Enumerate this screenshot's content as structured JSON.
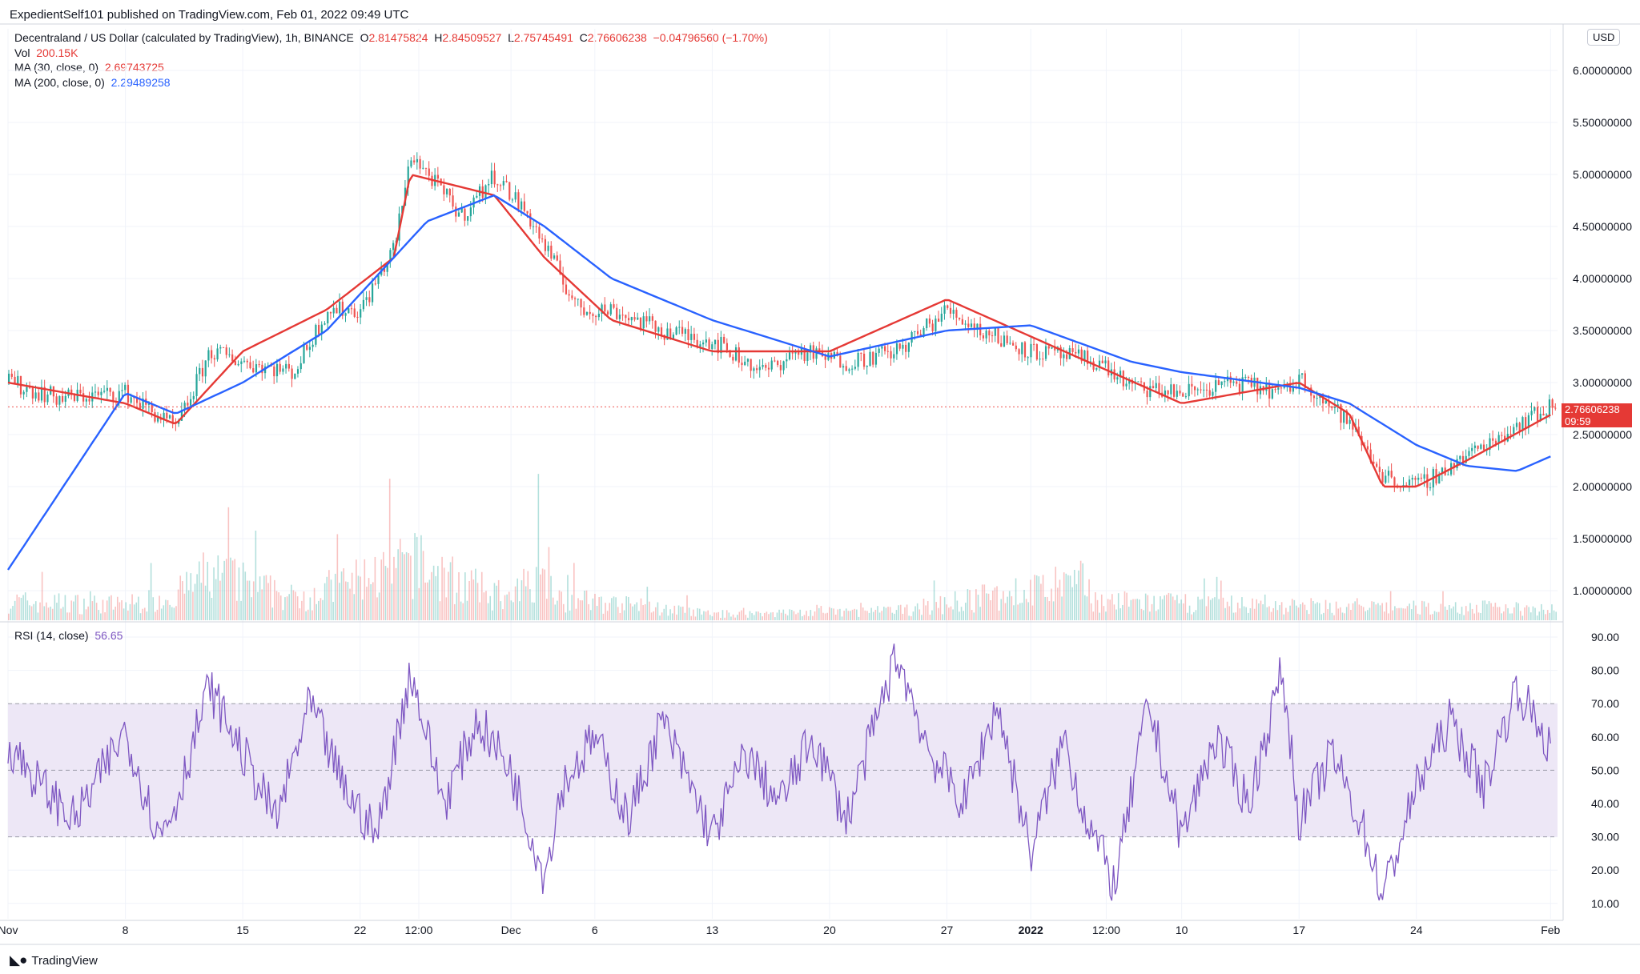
{
  "header": {
    "text": "ExpedientSelf101 published on TradingView.com, Feb 01, 2022 09:49 UTC"
  },
  "legend": {
    "symbol": "Decentraland / US Dollar (calculated by TradingView), 1h, BINANCE",
    "o_label": "O",
    "o": "2.81475824",
    "h_label": "H",
    "h": "2.84509527",
    "l_label": "L",
    "l": "2.75745491",
    "c_label": "C",
    "c": "2.76606238",
    "change": "−0.04796560 (−1.70%)",
    "vol_label": "Vol",
    "vol": "200.15K",
    "ma30_label": "MA (30, close, 0)",
    "ma30": "2.69743725",
    "ma200_label": "MA (200, close, 0)",
    "ma200": "2.29489258"
  },
  "rsi_legend": {
    "label": "RSI (14, close)",
    "value": "56.65"
  },
  "currency_badge": "USD",
  "price_tag": {
    "price": "2.76606238",
    "countdown": "09:59"
  },
  "footer": {
    "logo": "◣●",
    "brand": "TradingView"
  },
  "colors": {
    "up": "#26a69a",
    "down": "#ef5350",
    "ma30": "#e53935",
    "ma200": "#2962ff",
    "rsi": "#7e57c2",
    "rsi_band": "#ede7f6"
  },
  "chart_data": [
    {
      "type": "candlestick",
      "title": "Decentraland / US Dollar (calculated by TradingView), 1h, BINANCE",
      "x_tick_labels": [
        "Nov",
        "8",
        "15",
        "22",
        "12:00",
        "Dec",
        "6",
        "13",
        "20",
        "27",
        "2022",
        "12:00",
        "10",
        "17",
        "24",
        "Feb"
      ],
      "y_tick_labels": [
        "6.00000000",
        "5.50000000",
        "5.00000000",
        "4.50000000",
        "4.00000000",
        "3.50000000",
        "3.00000000",
        "2.50000000",
        "2.00000000",
        "1.50000000",
        "1.00000000"
      ],
      "ylim": [
        0.7,
        6.3
      ],
      "y_scale": "linear",
      "grid": true,
      "last_price": 2.76606238,
      "series": [
        {
          "name": "Price (close, approx.)",
          "x": [
            "Nov 1",
            "Nov 4",
            "Nov 8",
            "Nov 11",
            "Nov 13",
            "Nov 15",
            "Nov 18",
            "Nov 20",
            "Nov 22",
            "Nov 24",
            "Nov 25",
            "Nov 28",
            "Nov 30",
            "Dec 2",
            "Dec 3",
            "Dec 5",
            "Dec 7",
            "Dec 10",
            "Dec 13",
            "Dec 16",
            "Dec 18",
            "Dec 21",
            "Dec 24",
            "Dec 27",
            "Dec 29",
            "Jan 1",
            "Jan 3",
            "Jan 5",
            "Jan 7",
            "Jan 10",
            "Jan 13",
            "Jan 16",
            "Jan 17",
            "Jan 20",
            "Jan 22",
            "Jan 24",
            "Jan 27",
            "Jan 30",
            "Feb 1"
          ],
          "values": [
            3.0,
            2.85,
            2.9,
            2.55,
            3.3,
            3.2,
            3.1,
            3.7,
            3.7,
            4.3,
            5.2,
            4.6,
            5.0,
            4.6,
            4.3,
            3.7,
            3.7,
            3.5,
            3.4,
            3.1,
            3.3,
            3.2,
            3.3,
            3.7,
            3.5,
            3.3,
            3.25,
            3.2,
            2.95,
            2.9,
            3.0,
            2.9,
            3.05,
            2.6,
            2.1,
            2.0,
            2.3,
            2.6,
            2.77
          ]
        },
        {
          "name": "MA (30, close, 0)",
          "x": [
            "Nov 1",
            "Nov 8",
            "Nov 11",
            "Nov 15",
            "Nov 20",
            "Nov 24",
            "Nov 25",
            "Nov 30",
            "Dec 3",
            "Dec 7",
            "Dec 13",
            "Dec 20",
            "Dec 27",
            "Jan 3",
            "Jan 10",
            "Jan 17",
            "Jan 20",
            "Jan 22",
            "Jan 24",
            "Jan 27",
            "Feb 1"
          ],
          "values": [
            3.0,
            2.8,
            2.6,
            3.3,
            3.7,
            4.2,
            5.0,
            4.8,
            4.2,
            3.6,
            3.3,
            3.3,
            3.8,
            3.3,
            2.8,
            3.0,
            2.7,
            2.0,
            2.0,
            2.25,
            2.69
          ]
        },
        {
          "name": "MA (200, close, 0)",
          "x": [
            "Nov 1",
            "Nov 8",
            "Nov 11",
            "Nov 15",
            "Nov 20",
            "Nov 24",
            "Nov 26",
            "Nov 30",
            "Dec 3",
            "Dec 7",
            "Dec 13",
            "Dec 20",
            "Dec 27",
            "Jan 1",
            "Jan 7",
            "Jan 10",
            "Jan 17",
            "Jan 20",
            "Jan 24",
            "Jan 27",
            "Jan 30",
            "Feb 1"
          ],
          "values": [
            1.2,
            2.9,
            2.7,
            3.0,
            3.5,
            4.2,
            4.55,
            4.8,
            4.5,
            4.0,
            3.6,
            3.25,
            3.5,
            3.55,
            3.2,
            3.1,
            2.95,
            2.8,
            2.4,
            2.2,
            2.15,
            2.29
          ]
        }
      ]
    },
    {
      "type": "bar",
      "title": "Vol",
      "x": [
        "Nov 1",
        "Nov 8",
        "Nov 11",
        "Nov 13",
        "Nov 18",
        "Nov 24",
        "Nov 25",
        "Dec 1",
        "Dec 3",
        "Dec 4",
        "Dec 13",
        "Dec 24",
        "Jan 4",
        "Jan 5",
        "Jan 21",
        "Feb 1"
      ],
      "values": [
        0.3,
        0.25,
        0.4,
        0.75,
        0.35,
        0.8,
        0.9,
        0.3,
        1.0,
        0.35,
        0.1,
        0.15,
        0.6,
        0.3,
        0.2,
        0.2
      ],
      "units": "relative"
    },
    {
      "type": "line",
      "title": "RSI (14, close)",
      "y_tick_labels": [
        "90.00",
        "80.00",
        "70.00",
        "60.00",
        "50.00",
        "40.00",
        "30.00",
        "20.00",
        "10.00"
      ],
      "ylim": [
        5,
        95
      ],
      "bands": {
        "upper": 70,
        "middle": 50,
        "lower": 30
      },
      "x": [
        "Nov 1",
        "Nov 3",
        "Nov 5",
        "Nov 8",
        "Nov 10",
        "Nov 11",
        "Nov 13",
        "Nov 15",
        "Nov 17",
        "Nov 19",
        "Nov 21",
        "Nov 23",
        "Nov 25",
        "Nov 27",
        "Nov 29",
        "Dec 1",
        "Dec 3",
        "Dec 4",
        "Dec 6",
        "Dec 8",
        "Dec 10",
        "Dec 13",
        "Dec 15",
        "Dec 17",
        "Dec 19",
        "Dec 21",
        "Dec 24",
        "Dec 26",
        "Dec 28",
        "Dec 30",
        "Jan 1",
        "Jan 3",
        "Jan 4",
        "Jan 6",
        "Jan 8",
        "Jan 10",
        "Jan 12",
        "Jan 14",
        "Jan 16",
        "Jan 17",
        "Jan 19",
        "Jan 21",
        "Jan 22",
        "Jan 24",
        "Jan 26",
        "Jan 28",
        "Jan 30",
        "Feb 1"
      ],
      "values": [
        58,
        45,
        35,
        62,
        30,
        40,
        75,
        55,
        35,
        70,
        45,
        30,
        80,
        40,
        65,
        50,
        18,
        45,
        60,
        35,
        65,
        30,
        55,
        40,
        60,
        35,
        85,
        55,
        40,
        70,
        25,
        60,
        40,
        15,
        70,
        30,
        60,
        40,
        80,
        35,
        55,
        30,
        12,
        45,
        65,
        45,
        75,
        56.65
      ]
    }
  ]
}
